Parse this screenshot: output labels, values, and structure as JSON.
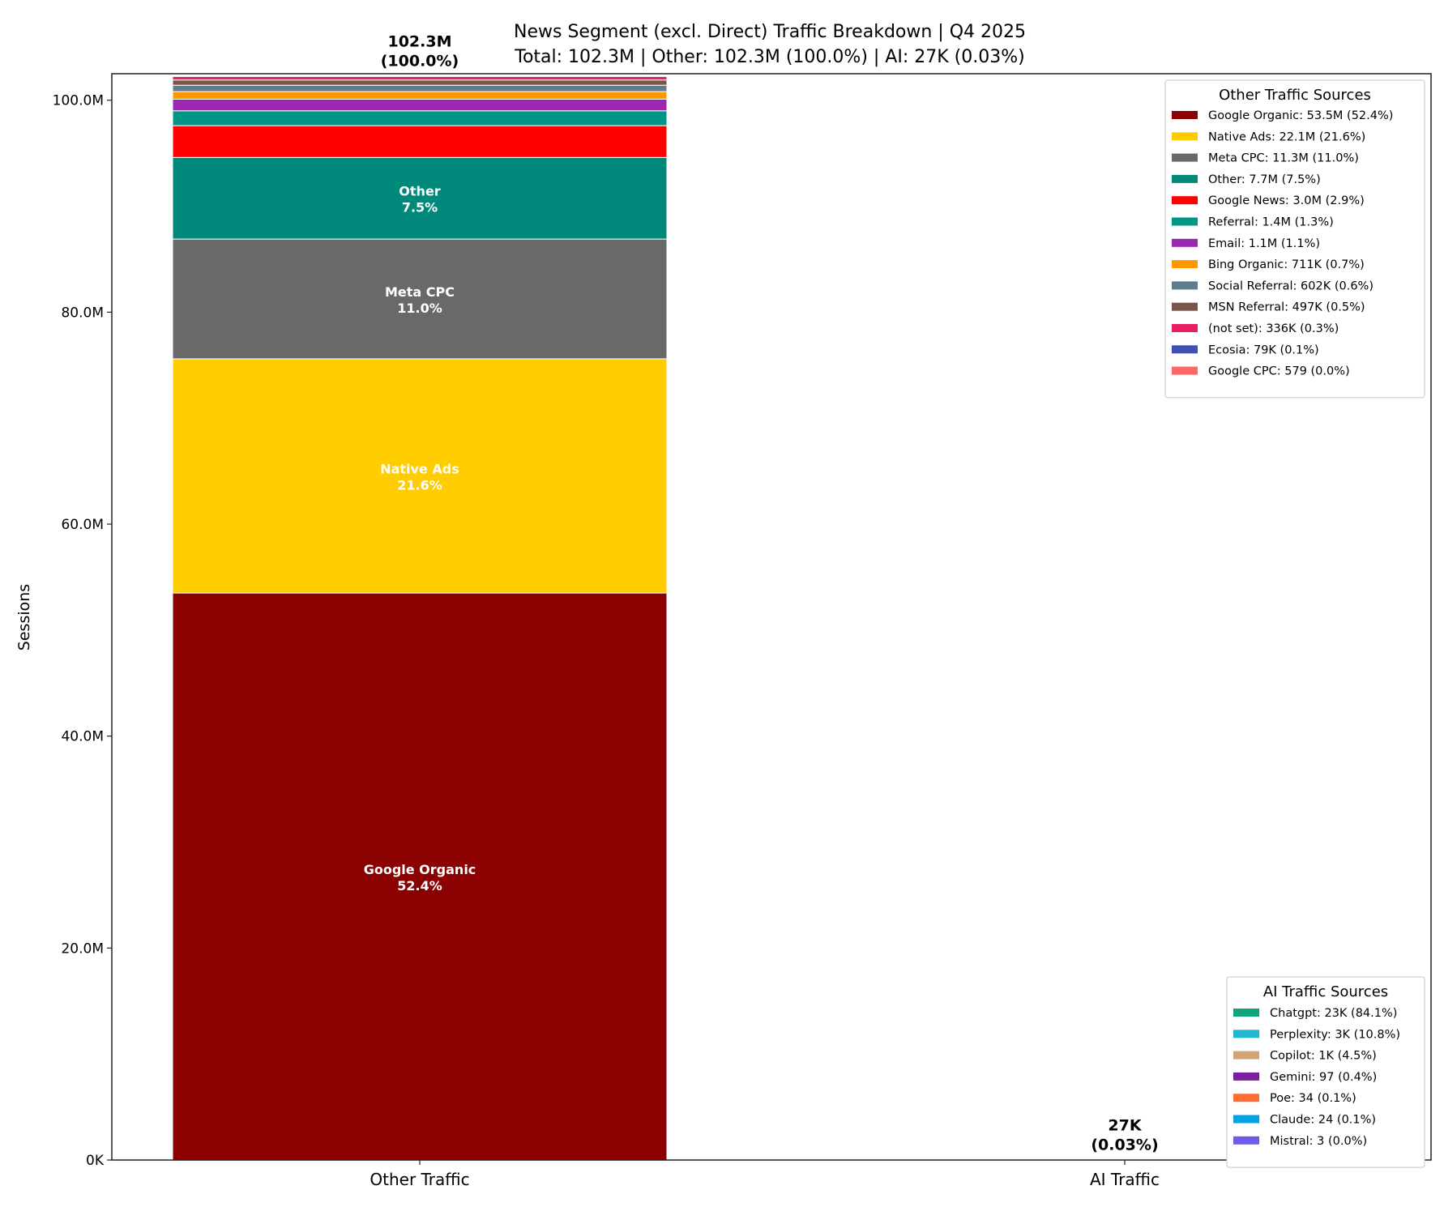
{
  "chart_data": {
    "type": "bar",
    "stacked": true,
    "title": "News Segment (excl. Direct) Traffic Breakdown | Q4 2025",
    "subtitle": "Total: 102.3M | Other: 102.3M (100.0%) | AI: 27K (0.03%)",
    "xlabel": "",
    "ylabel": "Sessions",
    "ylim": [
      0,
      102.5
    ],
    "y_unit": "M",
    "yticks": [
      {
        "value": 0,
        "label": "0K"
      },
      {
        "value": 20,
        "label": "20.0M"
      },
      {
        "value": 40,
        "label": "40.0M"
      },
      {
        "value": 60,
        "label": "60.0M"
      },
      {
        "value": 80,
        "label": "80.0M"
      },
      {
        "value": 100,
        "label": "100.0M"
      }
    ],
    "grid": false,
    "categories": [
      "Other Traffic",
      "AI Traffic"
    ],
    "totals": [
      {
        "value": 102.3,
        "label": "102.3M",
        "pct": "(100.0%)"
      },
      {
        "value": 0.027,
        "label": "27K",
        "pct": "(0.03%)"
      }
    ],
    "other_sources": {
      "legend_title": "Other Traffic Sources",
      "legend_position": "top-right",
      "items": [
        {
          "name": "Google Organic",
          "value": 53.5,
          "legend": "Google Organic: 53.5M (52.4%)",
          "pct": "52.4%",
          "color": "#8b0000"
        },
        {
          "name": "Native Ads",
          "value": 22.1,
          "legend": "Native Ads: 22.1M (21.6%)",
          "pct": "21.6%",
          "color": "#ffcc00"
        },
        {
          "name": "Meta CPC",
          "value": 11.3,
          "legend": "Meta CPC: 11.3M (11.0%)",
          "pct": "11.0%",
          "color": "#696969"
        },
        {
          "name": "Other",
          "value": 7.7,
          "legend": "Other: 7.7M (7.5%)",
          "pct": "7.5%",
          "color": "#00897b"
        },
        {
          "name": "Google News",
          "value": 3.0,
          "legend": "Google News: 3.0M (2.9%)",
          "pct": "2.9%",
          "color": "#ff0000"
        },
        {
          "name": "Referral",
          "value": 1.4,
          "legend": "Referral: 1.4M (1.3%)",
          "pct": "1.3%",
          "color": "#009688"
        },
        {
          "name": "Email",
          "value": 1.1,
          "legend": "Email: 1.1M (1.1%)",
          "pct": "1.1%",
          "color": "#9c27b0"
        },
        {
          "name": "Bing Organic",
          "value": 0.711,
          "legend": "Bing Organic: 711K (0.7%)",
          "pct": "0.7%",
          "color": "#ff9800"
        },
        {
          "name": "Social Referral",
          "value": 0.602,
          "legend": "Social Referral: 602K (0.6%)",
          "pct": "0.6%",
          "color": "#607d8b"
        },
        {
          "name": "MSN Referral",
          "value": 0.497,
          "legend": "MSN Referral: 497K (0.5%)",
          "pct": "0.5%",
          "color": "#795548"
        },
        {
          "name": "(not set)",
          "value": 0.336,
          "legend": "(not set): 336K (0.3%)",
          "pct": "0.3%",
          "color": "#e91e63"
        },
        {
          "name": "Ecosia",
          "value": 0.079,
          "legend": "Ecosia: 79K (0.1%)",
          "pct": "0.1%",
          "color": "#3f51b5"
        },
        {
          "name": "Google CPC",
          "value": 0.000579,
          "legend": "Google CPC: 579 (0.0%)",
          "pct": "0.0%",
          "color": "#ff6666"
        }
      ]
    },
    "ai_sources": {
      "legend_title": "AI Traffic Sources",
      "legend_position": "bottom-right",
      "items": [
        {
          "name": "Chatgpt",
          "value": 0.023,
          "legend": "Chatgpt: 23K (84.1%)",
          "color": "#10a37f"
        },
        {
          "name": "Perplexity",
          "value": 0.003,
          "legend": "Perplexity: 3K (10.8%)",
          "color": "#20b8cd"
        },
        {
          "name": "Copilot",
          "value": 0.001,
          "legend": "Copilot: 1K (4.5%)",
          "color": "#d4a373"
        },
        {
          "name": "Gemini",
          "value": 9.7e-05,
          "legend": "Gemini: 97 (0.4%)",
          "color": "#7b1fa2"
        },
        {
          "name": "Poe",
          "value": 3.4e-05,
          "legend": "Poe: 34 (0.1%)",
          "color": "#ff6b35"
        },
        {
          "name": "Claude",
          "value": 2.4e-05,
          "legend": "Claude: 24 (0.1%)",
          "color": "#00a2e8"
        },
        {
          "name": "Mistral",
          "value": 3e-06,
          "legend": "Mistral: 3 (0.0%)",
          "color": "#6c5ce7"
        }
      ]
    }
  }
}
